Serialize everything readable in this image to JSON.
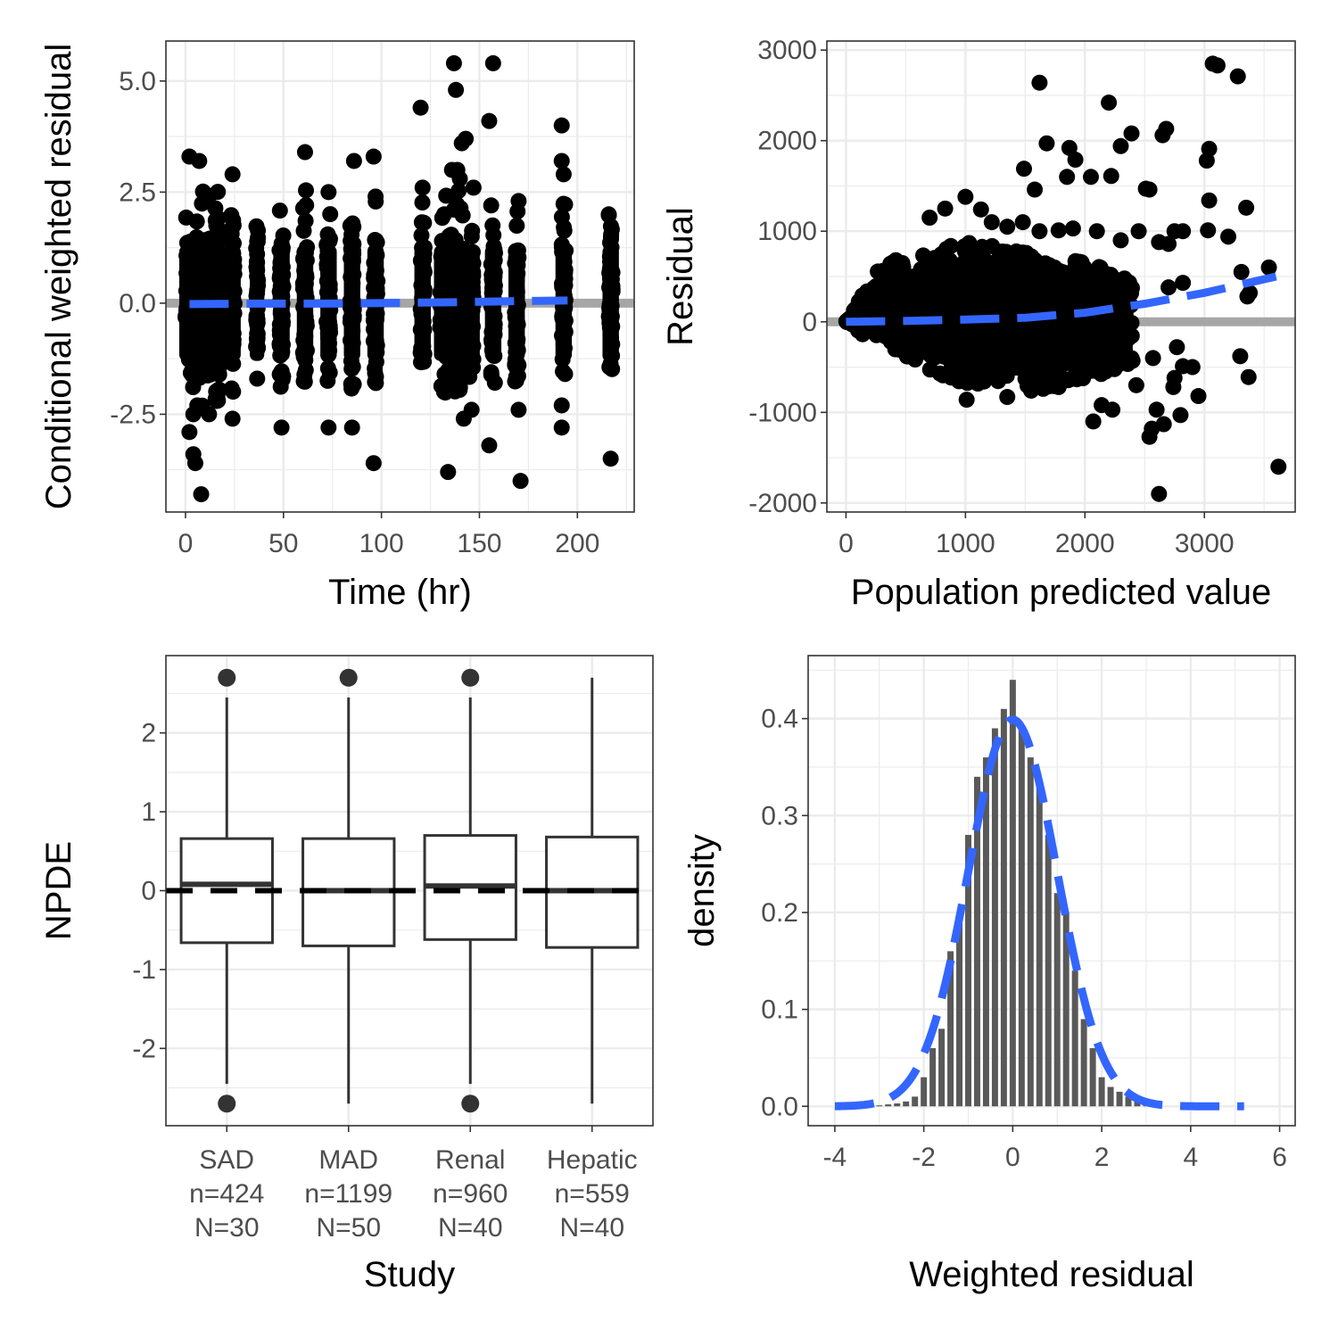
{
  "colors": {
    "points": "#000000",
    "smooth": "#3366ff",
    "reference": "#a6a6a6",
    "grid": "#ebebeb",
    "bars": "#595959",
    "box": "#333333"
  },
  "chart_data": [
    {
      "type": "scatter",
      "xlabel": "Time (hr)",
      "ylabel": "Conditional weighted residual",
      "xlim": [
        -10,
        229
      ],
      "ylim": [
        -4.7,
        5.9
      ],
      "x_ticks": [
        0,
        50,
        100,
        150,
        200
      ],
      "y_ticks": [
        -2.5,
        0.0,
        2.5,
        5.0
      ],
      "x_tick_labels": [
        "0",
        "50",
        "100",
        "150",
        "200"
      ],
      "y_tick_labels": [
        "-2.5",
        "0.0",
        "2.5",
        "5.0"
      ],
      "grid": true,
      "reference_line": 0,
      "time_clusters": [
        {
          "x": [
            0,
            4
          ],
          "min": -2.5,
          "max": 3.2
        },
        {
          "x": [
            5,
            9
          ],
          "min": -2.5,
          "max": 3.3
        },
        {
          "x": [
            10,
            14
          ],
          "min": -2.4,
          "max": 3.0
        },
        {
          "x": [
            15,
            18
          ],
          "min": -2.2,
          "max": 2.6
        },
        {
          "x": [
            23,
            25
          ],
          "min": -2.5,
          "max": 2.0
        },
        {
          "x": [
            36,
            37
          ],
          "min": -1.7,
          "max": 1.8
        },
        {
          "x": [
            48,
            50
          ],
          "min": -2.0,
          "max": 2.4
        },
        {
          "x": [
            60,
            62
          ],
          "min": -1.8,
          "max": 3.3
        },
        {
          "x": [
            72,
            74
          ],
          "min": -1.8,
          "max": 2.4
        },
        {
          "x": [
            84,
            86
          ],
          "min": -2.0,
          "max": 1.9
        },
        {
          "x": [
            96,
            98
          ],
          "min": -1.8,
          "max": 2.4
        },
        {
          "x": [
            120,
            122
          ],
          "min": -1.5,
          "max": 2.6
        },
        {
          "x": [
            130,
            142
          ],
          "min": -2.2,
          "max": 3.0
        },
        {
          "x": [
            144,
            147
          ],
          "min": -2.2,
          "max": 2.5
        },
        {
          "x": [
            156,
            158
          ],
          "min": -1.8,
          "max": 2.3
        },
        {
          "x": [
            168,
            170
          ],
          "min": -1.8,
          "max": 2.3
        },
        {
          "x": [
            192,
            194
          ],
          "min": -1.6,
          "max": 2.4
        },
        {
          "x": [
            216,
            218
          ],
          "min": -1.6,
          "max": 2.1
        }
      ],
      "points": [
        [
          2,
          -2.9
        ],
        [
          4,
          -3.4
        ],
        [
          5,
          -3.6
        ],
        [
          8,
          -4.3
        ],
        [
          4,
          -2.5
        ],
        [
          6,
          -2.3
        ],
        [
          12,
          -2.5
        ],
        [
          16,
          -2.2
        ],
        [
          24,
          -2.6
        ],
        [
          49,
          -2.8
        ],
        [
          73,
          -2.8
        ],
        [
          85,
          -2.8
        ],
        [
          96,
          -3.6
        ],
        [
          96,
          3.3
        ],
        [
          86,
          3.2
        ],
        [
          61,
          3.4
        ],
        [
          73,
          2.5
        ],
        [
          2,
          3.3
        ],
        [
          7,
          3.2
        ],
        [
          24,
          2.9
        ],
        [
          97,
          2.4
        ],
        [
          120,
          4.4
        ],
        [
          121,
          2.6
        ],
        [
          132,
          2.0
        ],
        [
          137,
          5.4
        ],
        [
          138,
          4.8
        ],
        [
          141,
          3.6
        ],
        [
          143,
          3.7
        ],
        [
          157,
          5.4
        ],
        [
          155,
          4.1
        ],
        [
          136,
          3.0
        ],
        [
          140,
          2.8
        ],
        [
          147,
          2.6
        ],
        [
          156,
          2.2
        ],
        [
          170,
          2.3
        ],
        [
          192,
          4.0
        ],
        [
          192,
          3.2
        ],
        [
          193,
          2.9
        ],
        [
          134,
          -3.8
        ],
        [
          142,
          -2.6
        ],
        [
          146,
          -2.4
        ],
        [
          155,
          -3.2
        ],
        [
          170,
          -2.4
        ],
        [
          171,
          -4.0
        ],
        [
          192,
          -2.3
        ],
        [
          192,
          -2.8
        ],
        [
          217,
          -3.5
        ],
        [
          216,
          2.0
        ]
      ],
      "smooth": {
        "x": [
          2,
          35,
          50,
          70,
          95,
          135,
          175,
          195
        ],
        "y": [
          -0.02,
          -0.01,
          -0.01,
          -0.01,
          0.0,
          0.02,
          0.05,
          0.06
        ]
      }
    },
    {
      "type": "scatter",
      "xlabel": "Population predicted value",
      "ylabel": "Residual",
      "xlim": [
        -160,
        3760
      ],
      "ylim": [
        -2100,
        3100
      ],
      "x_ticks": [
        0,
        1000,
        2000,
        3000
      ],
      "y_ticks": [
        -2000,
        -1000,
        0,
        1000,
        2000,
        3000
      ],
      "x_tick_labels": [
        "0",
        "1000",
        "2000",
        "3000"
      ],
      "y_tick_labels": [
        "-2000",
        "-1000",
        "0",
        "1000",
        "2000",
        "3000"
      ],
      "grid": true,
      "reference_line": 0,
      "points": [
        [
          3070,
          2850
        ],
        [
          3110,
          2830
        ],
        [
          3280,
          2710
        ],
        [
          1620,
          2640
        ],
        [
          2200,
          2420
        ],
        [
          2680,
          2130
        ],
        [
          2650,
          2060
        ],
        [
          2390,
          2080
        ],
        [
          2300,
          1940
        ],
        [
          3040,
          1910
        ],
        [
          3020,
          1780
        ],
        [
          1680,
          1970
        ],
        [
          1870,
          1920
        ],
        [
          1920,
          1790
        ],
        [
          2510,
          1470
        ],
        [
          2540,
          1460
        ],
        [
          1850,
          1600
        ],
        [
          2050,
          1600
        ],
        [
          2220,
          1610
        ],
        [
          1490,
          1690
        ],
        [
          1580,
          1460
        ],
        [
          3040,
          1340
        ],
        [
          3350,
          1260
        ],
        [
          2750,
          1000
        ],
        [
          3030,
          1010
        ],
        [
          3200,
          940
        ],
        [
          1000,
          1380
        ],
        [
          830,
          1250
        ],
        [
          1130,
          1240
        ],
        [
          700,
          1150
        ],
        [
          1220,
          1100
        ],
        [
          1350,
          1050
        ],
        [
          1480,
          1100
        ],
        [
          1620,
          1000
        ],
        [
          1780,
          1010
        ],
        [
          1900,
          1030
        ],
        [
          2100,
          1000
        ],
        [
          2300,
          900
        ],
        [
          2450,
          1000
        ],
        [
          2620,
          880
        ],
        [
          2700,
          860
        ],
        [
          2820,
          1000
        ],
        [
          3310,
          550
        ],
        [
          3380,
          320
        ],
        [
          3360,
          280
        ],
        [
          3540,
          600
        ],
        [
          2700,
          380
        ],
        [
          2820,
          430
        ],
        [
          3300,
          -380
        ],
        [
          3370,
          -610
        ],
        [
          3620,
          -1600
        ],
        [
          2620,
          -1900
        ],
        [
          2540,
          -1270
        ],
        [
          2560,
          -1180
        ],
        [
          2660,
          -1130
        ],
        [
          2800,
          -1030
        ],
        [
          2600,
          -970
        ],
        [
          2950,
          -820
        ],
        [
          2740,
          -720
        ],
        [
          2900,
          -500
        ],
        [
          2570,
          -400
        ],
        [
          2770,
          -280
        ],
        [
          2230,
          -970
        ],
        [
          2070,
          -1100
        ],
        [
          2140,
          -920
        ],
        [
          1780,
          -720
        ],
        [
          1650,
          -740
        ],
        [
          1010,
          -860
        ],
        [
          1350,
          -830
        ],
        [
          1550,
          -760
        ],
        [
          2820,
          -490
        ],
        [
          2750,
          -620
        ],
        [
          2430,
          -700
        ]
      ],
      "dense_region": {
        "x": [
          0,
          2400
        ],
        "upper_at_x": [
          [
            0,
            0
          ],
          [
            300,
            650
          ],
          [
            1000,
            880
          ],
          [
            1600,
            800
          ],
          [
            2400,
            500
          ]
        ],
        "lower_at_x": [
          [
            0,
            0
          ],
          [
            300,
            -300
          ],
          [
            1000,
            -700
          ],
          [
            1600,
            -760
          ],
          [
            2400,
            -500
          ]
        ]
      },
      "smooth": {
        "x": [
          0,
          500,
          1000,
          1500,
          2000,
          2500,
          3000,
          3600
        ],
        "y": [
          0,
          10,
          25,
          45,
          100,
          200,
          320,
          500
        ]
      }
    },
    {
      "type": "box",
      "xlabel": "Study",
      "ylabel": "NPDE",
      "ylim": [
        -2.98,
        2.98
      ],
      "y_ticks": [
        -2,
        -1,
        0,
        1,
        2
      ],
      "y_tick_labels": [
        "-2",
        "-1",
        "0",
        "1",
        "2"
      ],
      "grid": true,
      "reference_line": 0,
      "categories": [
        {
          "label": "SAD",
          "n": "n=424",
          "N": "N=30"
        },
        {
          "label": "MAD",
          "n": "n=1199",
          "N": "N=50"
        },
        {
          "label": "Renal",
          "n": "n=960",
          "N": "N=40"
        },
        {
          "label": "Hepatic",
          "n": "n=559",
          "N": "N=40"
        }
      ],
      "boxes": [
        {
          "lower": -2.45,
          "q1": -0.66,
          "median": 0.08,
          "q3": 0.66,
          "upper": 2.45,
          "outliers": [
            2.7,
            -2.7
          ]
        },
        {
          "lower": -2.7,
          "q1": -0.7,
          "median": 0.0,
          "q3": 0.66,
          "upper": 2.45,
          "outliers": [
            2.7
          ]
        },
        {
          "lower": -2.45,
          "q1": -0.62,
          "median": 0.06,
          "q3": 0.7,
          "upper": 2.45,
          "outliers": [
            2.7,
            -2.7
          ]
        },
        {
          "lower": -2.7,
          "q1": -0.72,
          "median": 0.0,
          "q3": 0.68,
          "upper": 2.7,
          "outliers": []
        }
      ]
    },
    {
      "type": "bar",
      "xlabel": "Weighted residual",
      "ylabel": "density",
      "xlim": [
        -4.6,
        6.35
      ],
      "ylim": [
        -0.02,
        0.465
      ],
      "x_ticks": [
        -4,
        -2,
        0,
        2,
        4,
        6
      ],
      "x_tick_labels": [
        "-4",
        "-2",
        "0",
        "2",
        "4",
        "6"
      ],
      "y_ticks": [
        0.0,
        0.1,
        0.2,
        0.3,
        0.4
      ],
      "y_tick_labels": [
        "0.0",
        "0.1",
        "0.2",
        "0.3",
        "0.4"
      ],
      "grid": true,
      "bin_width": 0.2,
      "bin_centers": [
        -3.0,
        -2.8,
        -2.6,
        -2.4,
        -2.2,
        -2.0,
        -1.8,
        -1.6,
        -1.4,
        -1.2,
        -1.0,
        -0.8,
        -0.6,
        -0.4,
        -0.2,
        0.0,
        0.2,
        0.4,
        0.6,
        0.8,
        1.0,
        1.2,
        1.4,
        1.6,
        1.8,
        2.0,
        2.2,
        2.4,
        2.6,
        2.8,
        3.0,
        3.2
      ],
      "values": [
        0.001,
        0.002,
        0.003,
        0.005,
        0.01,
        0.03,
        0.06,
        0.08,
        0.16,
        0.2,
        0.28,
        0.34,
        0.36,
        0.39,
        0.41,
        0.44,
        0.39,
        0.36,
        0.33,
        0.28,
        0.22,
        0.2,
        0.14,
        0.09,
        0.06,
        0.03,
        0.02,
        0.015,
        0.01,
        0.008,
        0.004,
        0.002
      ],
      "density_curve": {
        "type": "normal",
        "mean": 0,
        "sd": 1,
        "x_range": [
          -4,
          5.2
        ]
      }
    }
  ]
}
